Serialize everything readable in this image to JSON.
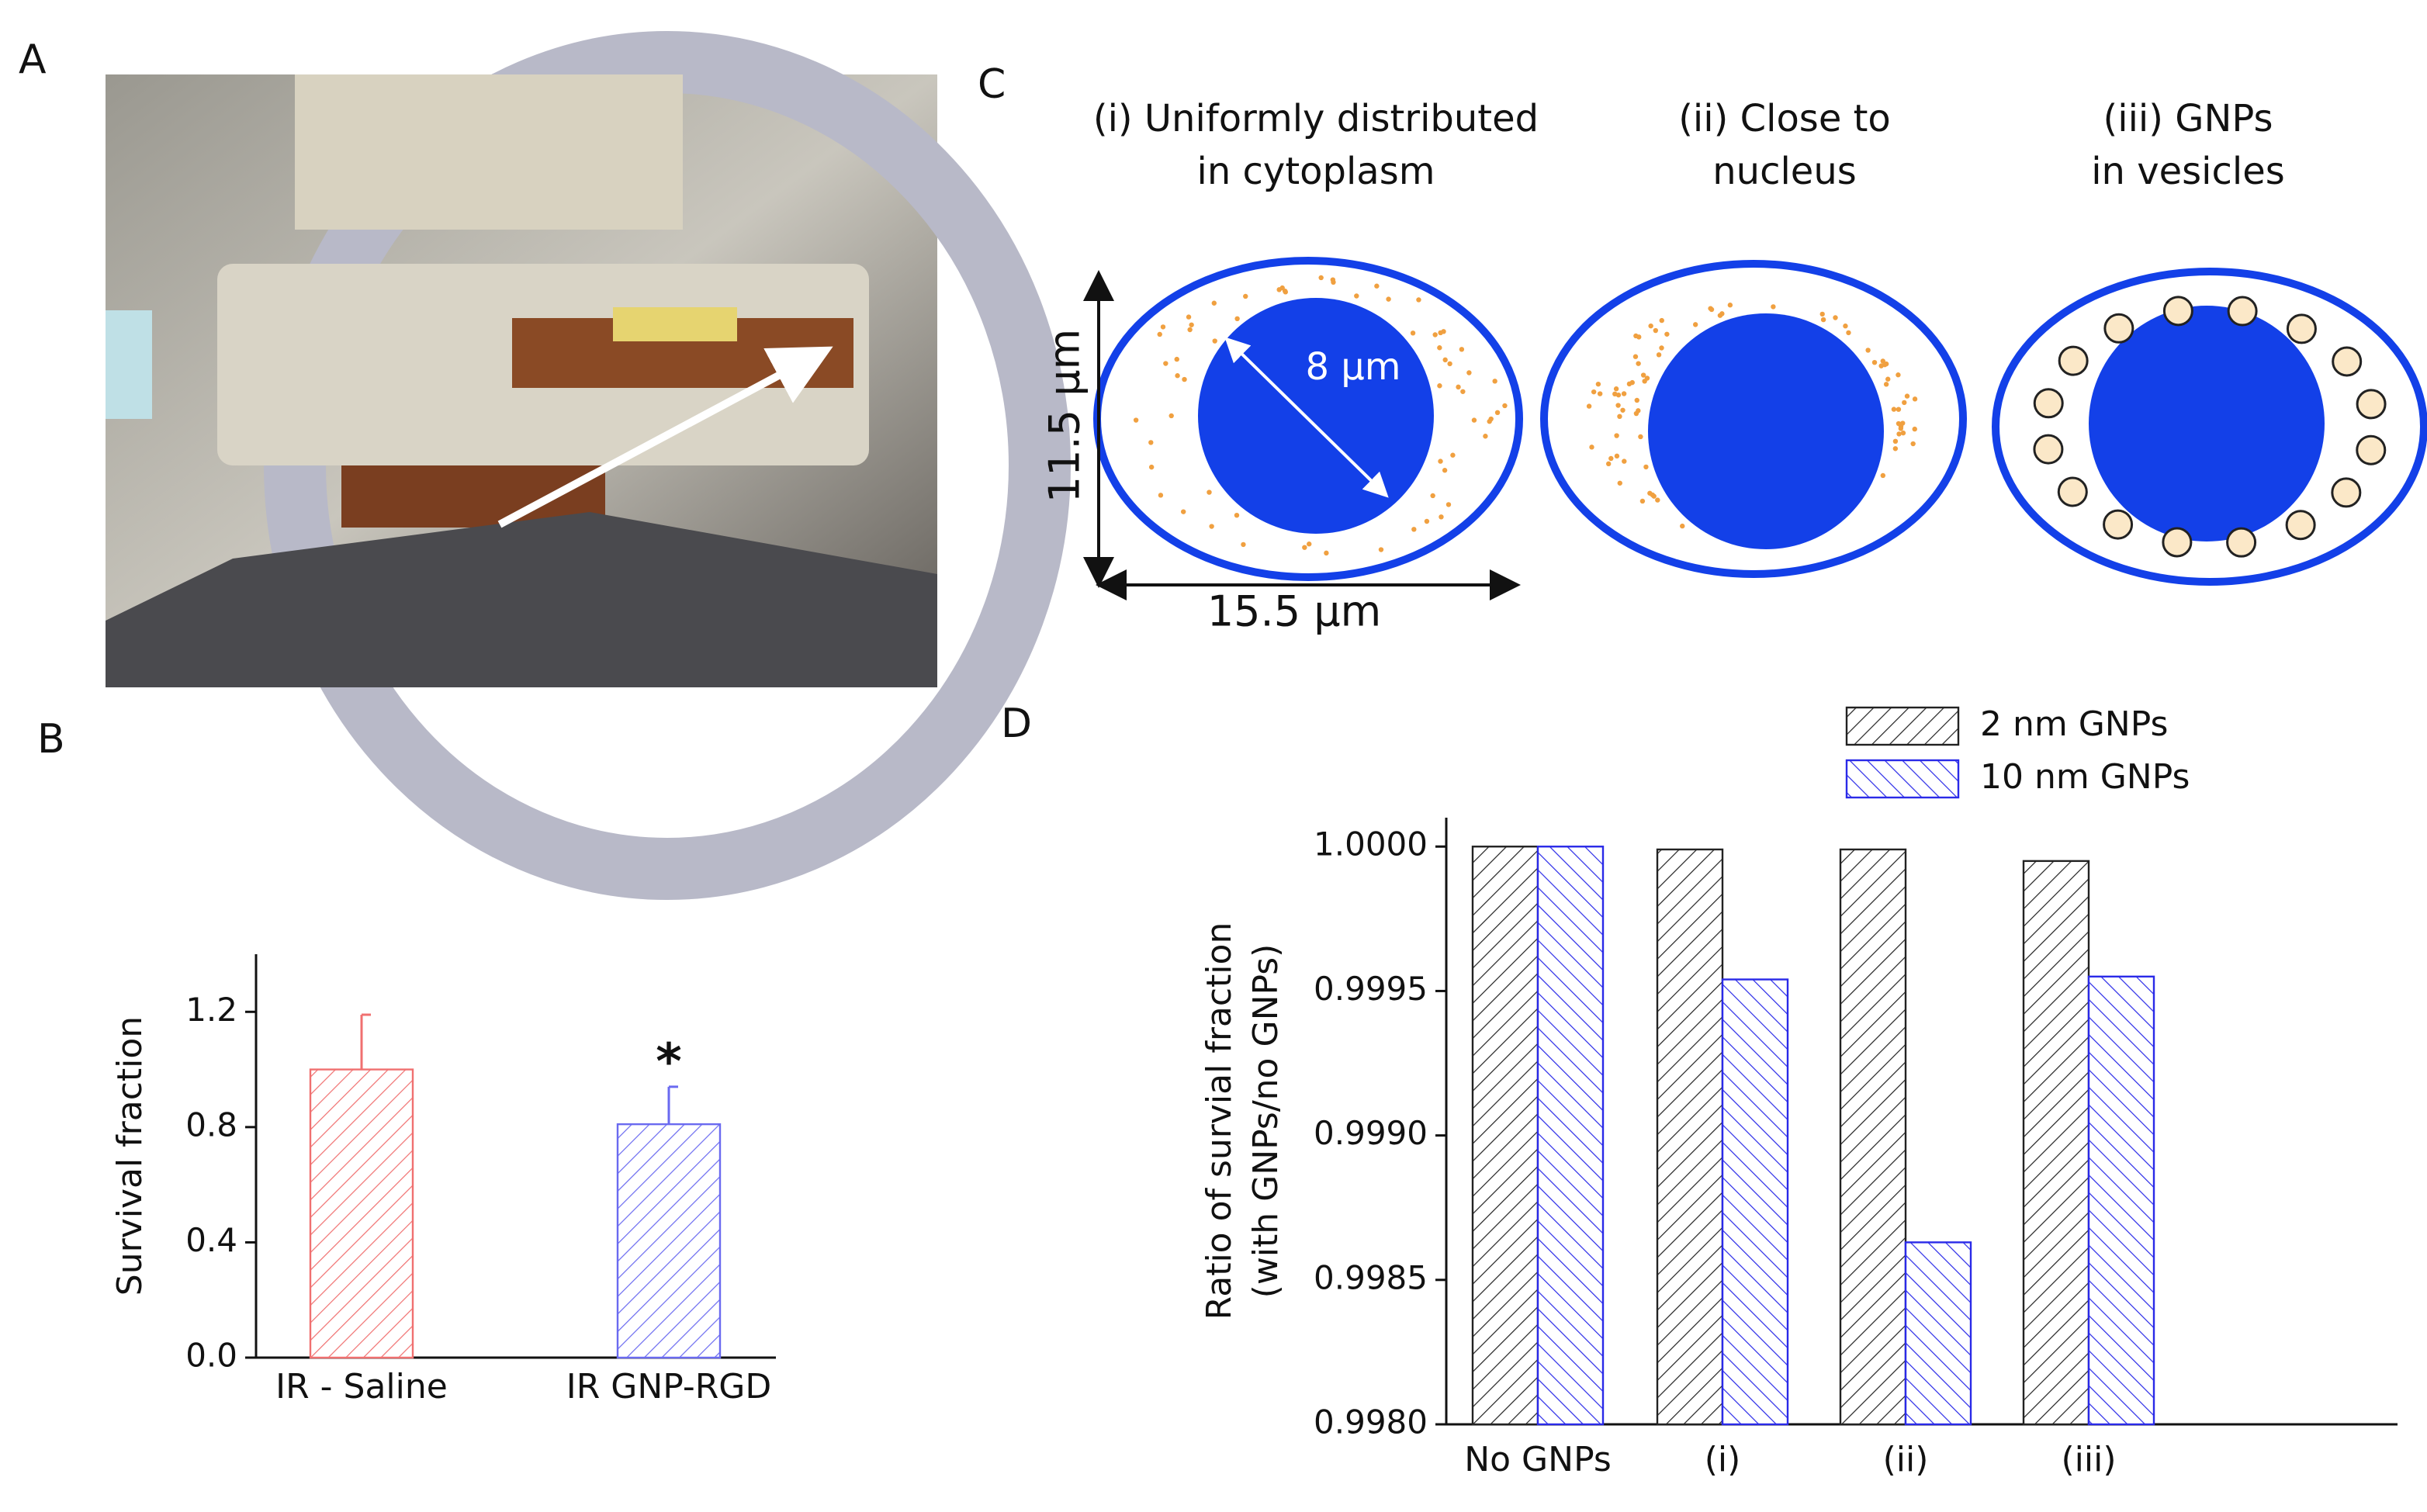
{
  "panels": [
    "A",
    "B",
    "C",
    "D"
  ],
  "diagram": {
    "captions": [
      [
        "(i) Uniformly distributed",
        "in cytoplasm"
      ],
      [
        "(ii) Close to",
        "nucleus"
      ],
      [
        "(iii) GNPs",
        "in vesicles"
      ]
    ],
    "nucleus_diameter": "8 µm",
    "cell_height": "11.5 µm",
    "cell_width": "15.5 µm"
  },
  "chart_data": [
    {
      "type": "bar",
      "ylabel": "Survival fraction",
      "categories": [
        "IR - Saline",
        "IR GNP-RGD"
      ],
      "values": [
        1.0,
        0.81
      ],
      "errors": [
        0.19,
        0.13
      ],
      "colors": [
        "#f07070",
        "#6a6af0"
      ],
      "annotation": "*",
      "ylim": [
        0,
        1.4
      ],
      "yticks": [
        {
          "value": 0,
          "label": "0.0"
        },
        0.4,
        0.8,
        1.2
      ]
    },
    {
      "type": "bar",
      "ylabel": [
        "Ratio of survial fraction",
        "(with GNPs/no GNPs)"
      ],
      "categories": [
        "No GNPs",
        "(i)",
        "(ii)",
        "(iii)"
      ],
      "series": [
        {
          "name": "2 nm GNPs",
          "color": "#222222",
          "values": [
            1.0,
            0.99999,
            0.99999,
            0.99995
          ]
        },
        {
          "name": "10 nm GNPs",
          "color": "#2a2ae8",
          "values": [
            1.0,
            0.99954,
            0.99863,
            0.99955
          ]
        }
      ],
      "ylim": [
        0.998,
        1.0001
      ],
      "yticks": [
        {
          "value": 0.998,
          "label": "0.9980"
        },
        {
          "value": 0.9985,
          "label": "0.9985"
        },
        {
          "value": 0.999,
          "label": "0.9990"
        },
        {
          "value": 0.9995,
          "label": "0.9995"
        },
        {
          "value": 1,
          "label": "1.0000"
        }
      ]
    }
  ]
}
